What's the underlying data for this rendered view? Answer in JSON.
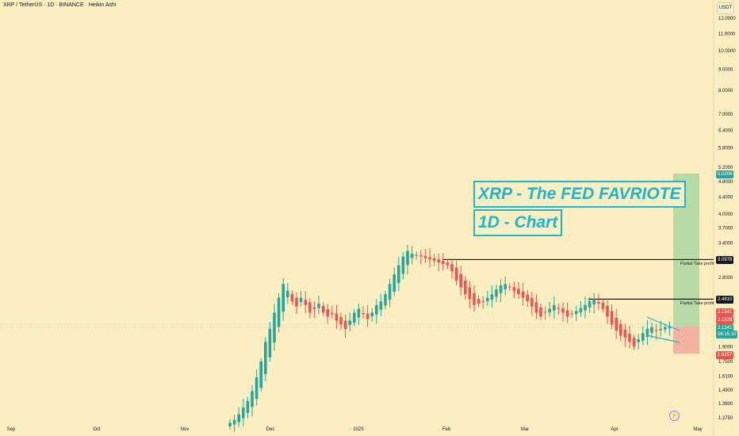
{
  "header": {
    "symbol_title": "XRP / TetherUS · 1D · BINANCE · Heikin Ashi",
    "currency": "USDT"
  },
  "annotations": {
    "title_text": "XRP - The FED FAVRIOTE",
    "subtitle_text": "1D - Chart",
    "tp1_label": "Partial Take profit",
    "tp2_label": "Partial Take profit"
  },
  "price_tags": {
    "target": "5.0206",
    "tp1": "3.0978",
    "tp2": "2.4810",
    "red_high": "2.1541",
    "red_mid": "2.1529",
    "current_price": "2.1241",
    "current_timer": "06:15:10",
    "stop": "1.8257"
  },
  "colors": {
    "background": "#fbeec1",
    "up_candle": "#26a69a",
    "down_candle": "#ef5350",
    "annotation": "#1fb5cc",
    "target_zone": "#a8d5a0",
    "stop_zone": "#f4a79a"
  },
  "chart_data": {
    "type": "candlestick",
    "style": "Heikin Ashi",
    "scale": "log",
    "x_axis_labels": [
      "Sep",
      "Oct",
      "Nov",
      "Dec",
      "2025",
      "Feb",
      "Mar",
      "Apr",
      "May"
    ],
    "y_ticks": [
      "12.0000",
      "11.0000",
      "10.0000",
      "9.0000",
      "8.0000",
      "7.0000",
      "6.4000",
      "5.8000",
      "5.2000",
      "4.8000",
      "4.4000",
      "4.0000",
      "3.7000",
      "3.4000",
      "2.8000",
      "1.9000",
      "1.7500",
      "1.6100",
      "1.4900",
      "1.3800",
      "1.2750"
    ],
    "ylim": [
      1.23,
      13.0
    ],
    "series_daily_close": [
      1.24,
      1.26,
      1.3,
      1.35,
      1.4,
      1.48,
      1.6,
      1.75,
      1.95,
      2.1,
      2.3,
      2.5,
      2.7,
      2.6,
      2.45,
      2.38,
      2.5,
      2.4,
      2.3,
      2.35,
      2.42,
      2.3,
      2.25,
      2.28,
      2.2,
      2.15,
      2.1,
      2.2,
      2.3,
      2.35,
      2.28,
      2.22,
      2.3,
      2.4,
      2.45,
      2.55,
      2.7,
      2.85,
      3.0,
      3.15,
      3.25,
      3.2,
      3.18,
      3.15,
      3.12,
      3.1,
      3.08,
      3.05,
      3.02,
      3.0,
      2.9,
      2.75,
      2.65,
      2.55,
      2.48,
      2.4,
      2.42,
      2.45,
      2.5,
      2.55,
      2.62,
      2.68,
      2.7,
      2.65,
      2.6,
      2.55,
      2.5,
      2.45,
      2.38,
      2.3,
      2.25,
      2.3,
      2.35,
      2.4,
      2.35,
      2.3,
      2.25,
      2.28,
      2.32,
      2.36,
      2.4,
      2.45,
      2.48,
      2.42,
      2.35,
      2.25,
      2.15,
      2.08,
      2.02,
      2.0,
      1.95,
      1.9,
      1.98,
      2.05,
      2.1,
      2.12,
      2.08,
      2.1,
      2.12,
      2.124
    ],
    "horizontal_levels": [
      {
        "price": 3.0978,
        "label": "Partial Take profit"
      },
      {
        "price": 2.481,
        "label": "Partial Take profit"
      }
    ],
    "position": {
      "entry": 2.1241,
      "target": 5.0206,
      "stop": 1.8257
    }
  }
}
